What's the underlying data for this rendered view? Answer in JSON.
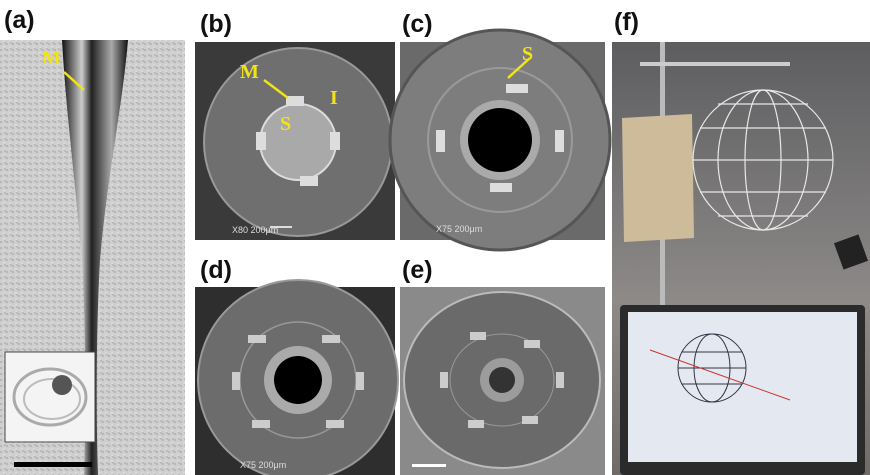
{
  "panels": [
    {
      "label": "(a)",
      "annotations": [
        "M"
      ]
    },
    {
      "label": "(b)",
      "annotations": [
        "M",
        "S",
        "I"
      ],
      "scale_text": "X80 200μm"
    },
    {
      "label": "(c)",
      "annotations": [
        "S"
      ],
      "scale_text": "X75 200μm"
    },
    {
      "label": "(d)",
      "scale_text": "X75 200μm"
    },
    {
      "label": "(e)"
    },
    {
      "label": "(f)"
    }
  ]
}
